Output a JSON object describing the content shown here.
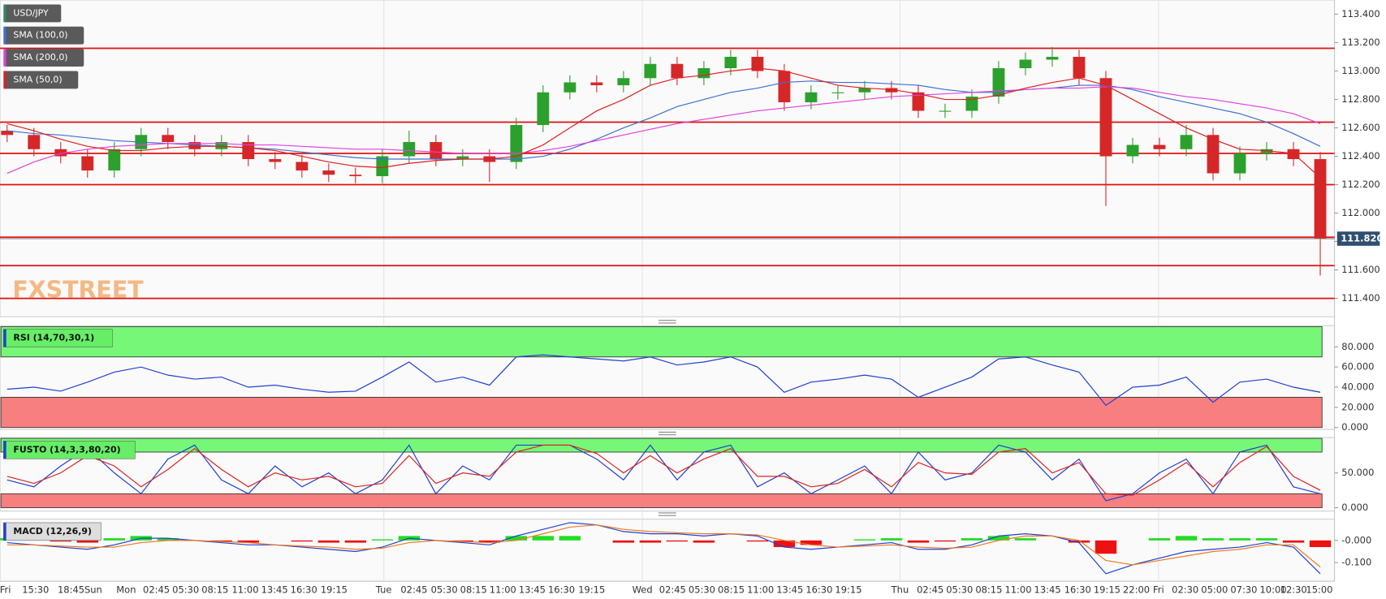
{
  "chart_data": [
    {
      "type": "candlestick",
      "title": "USD/JPY",
      "title_color": "#2d8a63",
      "watermark": "FXSTREET",
      "up_color": "#2ca02c",
      "down_color": "#d62728",
      "open": [
        112.58,
        112.55,
        112.45,
        112.4,
        112.3,
        112.45,
        112.55,
        112.5,
        112.45,
        112.5,
        112.38,
        112.36,
        112.3,
        112.27,
        112.26,
        112.4,
        112.5,
        112.38,
        112.4,
        112.36,
        112.62,
        112.85,
        112.92,
        112.9,
        112.95,
        113.05,
        112.95,
        113.02,
        113.1,
        113.0,
        112.78,
        112.85,
        112.85,
        112.88,
        112.85,
        112.72,
        112.72,
        112.82,
        113.02,
        113.08,
        113.1,
        112.95,
        112.4,
        112.48,
        112.45,
        112.55,
        112.28,
        112.42,
        112.45,
        112.38
      ],
      "high": [
        112.62,
        112.6,
        112.5,
        112.45,
        112.5,
        112.6,
        112.6,
        112.55,
        112.55,
        112.55,
        112.43,
        112.41,
        112.35,
        112.32,
        112.45,
        112.58,
        112.55,
        112.45,
        112.45,
        112.67,
        112.9,
        112.97,
        112.97,
        113.0,
        113.1,
        113.1,
        113.07,
        113.15,
        113.15,
        113.05,
        112.9,
        112.9,
        112.93,
        112.93,
        112.9,
        112.77,
        112.87,
        113.07,
        113.13,
        113.17,
        113.15,
        113.0,
        112.53,
        112.53,
        112.62,
        112.6,
        112.47,
        112.5,
        112.5,
        112.43
      ],
      "low": [
        112.5,
        112.4,
        112.35,
        112.25,
        112.25,
        112.4,
        112.45,
        112.4,
        112.4,
        112.33,
        112.31,
        112.25,
        112.22,
        112.21,
        112.21,
        112.35,
        112.33,
        112.33,
        112.22,
        112.31,
        112.57,
        112.8,
        112.85,
        112.85,
        112.9,
        112.9,
        112.9,
        112.97,
        112.95,
        112.72,
        112.73,
        112.8,
        112.8,
        112.8,
        112.67,
        112.67,
        112.67,
        112.77,
        112.97,
        113.03,
        112.9,
        112.05,
        112.35,
        112.4,
        112.4,
        112.23,
        112.23,
        112.37,
        112.33,
        111.56
      ],
      "close": [
        112.55,
        112.45,
        112.4,
        112.3,
        112.45,
        112.55,
        112.5,
        112.45,
        112.5,
        112.38,
        112.36,
        112.3,
        112.27,
        112.26,
        112.4,
        112.5,
        112.38,
        112.4,
        112.36,
        112.62,
        112.85,
        112.92,
        112.9,
        112.95,
        113.05,
        112.95,
        113.02,
        113.1,
        113.0,
        112.78,
        112.85,
        112.85,
        112.88,
        112.85,
        112.72,
        112.72,
        112.82,
        113.02,
        113.08,
        113.1,
        112.95,
        112.4,
        112.48,
        112.45,
        112.55,
        112.28,
        112.42,
        112.45,
        112.38,
        111.82
      ],
      "series": [
        {
          "name": "SMA (100,0)",
          "color": "#3f6fd0",
          "values": [
            112.58,
            112.56,
            112.55,
            112.53,
            112.51,
            112.5,
            112.49,
            112.48,
            112.47,
            112.46,
            112.45,
            112.43,
            112.41,
            112.39,
            112.38,
            112.38,
            112.38,
            112.38,
            112.38,
            112.38,
            112.4,
            112.45,
            112.52,
            112.6,
            112.67,
            112.75,
            112.8,
            112.85,
            112.88,
            112.92,
            112.93,
            112.92,
            112.92,
            112.91,
            112.9,
            112.87,
            112.85,
            112.85,
            112.87,
            112.88,
            112.9,
            112.9,
            112.87,
            112.82,
            112.78,
            112.74,
            112.7,
            112.64,
            112.56,
            112.47
          ]
        },
        {
          "name": "SMA (200,0)",
          "color": "#e040e0",
          "values": [
            112.28,
            112.36,
            112.42,
            112.45,
            112.47,
            112.48,
            112.49,
            112.49,
            112.49,
            112.48,
            112.48,
            112.47,
            112.46,
            112.45,
            112.45,
            112.44,
            112.43,
            112.42,
            112.42,
            112.42,
            112.44,
            112.47,
            112.51,
            112.55,
            112.59,
            112.63,
            112.66,
            112.69,
            112.72,
            112.74,
            112.76,
            112.78,
            112.8,
            112.82,
            112.83,
            112.84,
            112.85,
            112.86,
            112.87,
            112.88,
            112.88,
            112.89,
            112.88,
            112.85,
            112.82,
            112.8,
            112.77,
            112.74,
            112.7,
            112.63
          ]
        },
        {
          "name": "SMA (50,0)",
          "color": "#e02020",
          "values": [
            112.63,
            112.58,
            112.52,
            112.47,
            112.44,
            112.44,
            112.46,
            112.47,
            112.47,
            112.46,
            112.44,
            112.4,
            112.36,
            112.33,
            112.32,
            112.35,
            112.37,
            112.38,
            112.38,
            112.4,
            112.48,
            112.6,
            112.72,
            112.8,
            112.9,
            112.95,
            112.97,
            113.0,
            113.02,
            113.0,
            112.95,
            112.9,
            112.88,
            112.87,
            112.84,
            112.8,
            112.8,
            112.83,
            112.88,
            112.92,
            112.95,
            112.9,
            112.8,
            112.7,
            112.6,
            112.52,
            112.45,
            112.44,
            112.42,
            112.25
          ]
        }
      ],
      "levels": [
        113.16,
        112.64,
        112.42,
        112.2,
        111.83,
        111.63,
        111.4
      ],
      "level_color": "#e01010",
      "last_price": {
        "value": 111.82,
        "label": "111.820"
      },
      "ylim": [
        111.27,
        113.5
      ],
      "yticks": [
        {
          "value": 111.4,
          "label": "111.400"
        },
        {
          "value": 111.6,
          "label": "111.600"
        },
        {
          "value": 111.8,
          "label": "111.800"
        },
        {
          "value": 112.0,
          "label": "112.000"
        },
        {
          "value": 112.2,
          "label": "112.200"
        },
        {
          "value": 112.4,
          "label": "112.400"
        },
        {
          "value": 112.6,
          "label": "112.600"
        },
        {
          "value": 112.8,
          "label": "112.800"
        },
        {
          "value": 113.0,
          "label": "113.000"
        },
        {
          "value": 113.2,
          "label": "113.200"
        },
        {
          "value": 113.4,
          "label": "113.400"
        }
      ]
    },
    {
      "type": "line",
      "title": "RSI (14,70,30,1)",
      "series": [
        {
          "color": "#2040d0",
          "values": [
            38,
            40,
            36,
            45,
            55,
            60,
            52,
            48,
            50,
            40,
            42,
            38,
            35,
            36,
            50,
            65,
            45,
            50,
            42,
            70,
            72,
            70,
            68,
            66,
            70,
            62,
            65,
            70,
            60,
            35,
            45,
            48,
            52,
            48,
            30,
            40,
            50,
            68,
            70,
            62,
            55,
            22,
            40,
            42,
            50,
            25,
            45,
            48,
            40,
            35
          ]
        }
      ],
      "overbought_zone": [
        70,
        100
      ],
      "oversold_zone": [
        0,
        30
      ],
      "overbought_color": "#77f777",
      "oversold_color": "#f77f7f",
      "ylim": [
        -2,
        101
      ],
      "yticks": [
        {
          "value": 0,
          "label": "0.000"
        },
        {
          "value": 20,
          "label": "20.000"
        },
        {
          "value": 40,
          "label": "40.000"
        },
        {
          "value": 60,
          "label": "60.000"
        },
        {
          "value": 80,
          "label": "80.000"
        }
      ]
    },
    {
      "type": "line",
      "title": "FUSTO (14,3,3,80,20)",
      "series": [
        {
          "color": "#2040d0",
          "values": [
            40,
            30,
            60,
            85,
            50,
            20,
            70,
            90,
            40,
            20,
            60,
            30,
            50,
            20,
            40,
            90,
            20,
            60,
            40,
            90,
            90,
            90,
            70,
            40,
            90,
            40,
            80,
            90,
            30,
            50,
            20,
            40,
            60,
            20,
            80,
            40,
            50,
            90,
            80,
            40,
            70,
            10,
            20,
            50,
            70,
            20,
            80,
            90,
            30,
            20
          ]
        },
        {
          "color": "#e02020",
          "values": [
            45,
            35,
            50,
            75,
            60,
            30,
            55,
            85,
            55,
            30,
            50,
            40,
            45,
            30,
            35,
            75,
            35,
            50,
            45,
            80,
            90,
            90,
            78,
            50,
            75,
            50,
            70,
            85,
            45,
            45,
            30,
            35,
            55,
            30,
            65,
            50,
            48,
            80,
            85,
            50,
            65,
            20,
            18,
            40,
            65,
            30,
            65,
            88,
            45,
            25
          ]
        }
      ],
      "overbought_zone": [
        80,
        100
      ],
      "oversold_zone": [
        0,
        20
      ],
      "overbought_color": "#77f777",
      "oversold_color": "#f77f7f",
      "ylim": [
        -5,
        101
      ],
      "yticks": [
        {
          "value": 0,
          "label": "0.000"
        },
        {
          "value": 50,
          "label": "50.000"
        }
      ]
    },
    {
      "type": "line",
      "title": "MACD (12,26,9)",
      "series": [
        {
          "color": "#2040d0",
          "values": [
            -0.01,
            -0.02,
            -0.03,
            -0.04,
            -0.02,
            0.01,
            0.01,
            0.0,
            -0.01,
            -0.02,
            -0.02,
            -0.03,
            -0.04,
            -0.05,
            -0.03,
            0.01,
            0.0,
            -0.01,
            -0.02,
            0.02,
            0.05,
            0.08,
            0.07,
            0.04,
            0.03,
            0.03,
            0.02,
            0.03,
            0.02,
            -0.03,
            -0.04,
            -0.03,
            -0.02,
            -0.01,
            -0.04,
            -0.04,
            -0.02,
            0.02,
            0.03,
            0.02,
            -0.01,
            -0.15,
            -0.11,
            -0.08,
            -0.05,
            -0.04,
            -0.03,
            -0.01,
            -0.03,
            -0.15
          ]
        },
        {
          "color": "#f07820",
          "values": [
            -0.02,
            -0.02,
            -0.025,
            -0.03,
            -0.03,
            -0.01,
            0.0,
            0.0,
            -0.005,
            -0.01,
            -0.02,
            -0.025,
            -0.03,
            -0.04,
            -0.035,
            -0.01,
            0.0,
            -0.005,
            -0.01,
            0.0,
            0.03,
            0.06,
            0.07,
            0.05,
            0.04,
            0.035,
            0.03,
            0.03,
            0.025,
            0.0,
            -0.02,
            -0.03,
            -0.025,
            -0.02,
            -0.03,
            -0.035,
            -0.03,
            0.0,
            0.02,
            0.02,
            0.0,
            -0.09,
            -0.11,
            -0.09,
            -0.07,
            -0.05,
            -0.04,
            -0.02,
            -0.02,
            -0.12
          ]
        }
      ],
      "histogram": {
        "up_color": "#22dd22",
        "down_color": "#ee1111",
        "values": [
          0.01,
          0.0,
          -0.005,
          -0.01,
          0.01,
          0.02,
          0.01,
          0.0,
          -0.005,
          -0.01,
          0.0,
          -0.005,
          -0.01,
          -0.01,
          0.005,
          0.02,
          0.0,
          -0.005,
          -0.01,
          0.02,
          0.02,
          0.02,
          0.0,
          -0.01,
          -0.01,
          -0.005,
          -0.01,
          0.0,
          -0.005,
          -0.03,
          -0.02,
          0.0,
          0.005,
          0.01,
          -0.01,
          -0.005,
          0.01,
          0.02,
          0.01,
          0.0,
          -0.01,
          -0.06,
          0.0,
          0.01,
          0.02,
          0.01,
          0.01,
          0.01,
          -0.01,
          -0.03
        ]
      },
      "ylim": [
        -0.184,
        0.096
      ],
      "yticks": [
        {
          "value": -0.1,
          "label": "-0.100"
        },
        {
          "value": 0,
          "label": "-0.000"
        }
      ]
    }
  ],
  "time_axis_labels": [
    "Fri",
    "15:30",
    "18:45",
    "Sun",
    "Mon",
    "02:45",
    "05:30",
    "08:15",
    "11:00",
    "13:45",
    "16:30",
    "19:15",
    "Tue",
    "02:45",
    "05:30",
    "08:15",
    "11:00",
    "13:45",
    "16:30",
    "19:15",
    "Wed",
    "02:45",
    "05:30",
    "08:15",
    "11:00",
    "13:45",
    "16:30",
    "19:15",
    "Thu",
    "02:45",
    "05:30",
    "08:15",
    "11:00",
    "13:45",
    "16:30",
    "19:15",
    "22:00",
    "Fri",
    "02:30",
    "05:00",
    "07:30",
    "10:00",
    "12:30",
    "15:00"
  ]
}
